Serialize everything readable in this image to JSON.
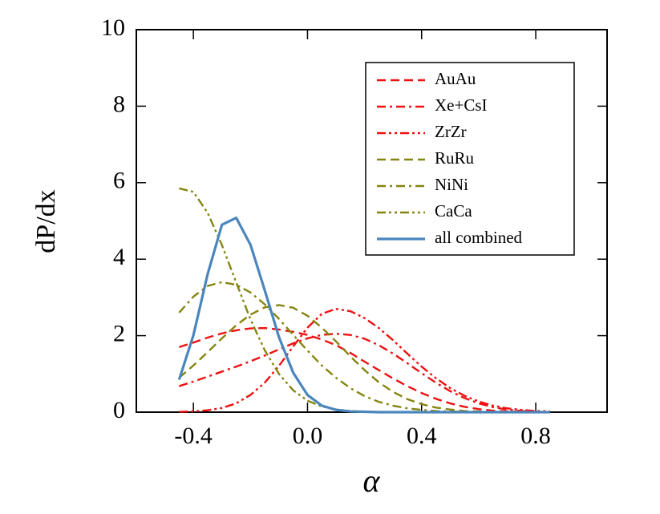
{
  "chart_data": {
    "type": "line",
    "x_label": "α",
    "y_label": "dP/dx",
    "x": [
      -0.45,
      -0.4,
      -0.35,
      -0.3,
      -0.25,
      -0.2,
      -0.15,
      -0.1,
      -0.05,
      0.0,
      0.05,
      0.1,
      0.15,
      0.2,
      0.25,
      0.3,
      0.35,
      0.4,
      0.45,
      0.5,
      0.55,
      0.6,
      0.65,
      0.7,
      0.75,
      0.8,
      0.85
    ],
    "series": [
      {
        "name": "AuAu",
        "color": "#ee1111",
        "style": "dashed",
        "values": [
          1.7,
          1.82,
          1.95,
          2.06,
          2.14,
          2.19,
          2.2,
          2.16,
          2.1,
          2.02,
          1.9,
          1.75,
          1.55,
          1.32,
          1.1,
          0.88,
          0.68,
          0.5,
          0.35,
          0.23,
          0.14,
          0.08,
          0.04,
          0.02,
          0.01,
          0,
          0
        ]
      },
      {
        "name": "Xe+CsI",
        "color": "#ee1111",
        "style": "dashdot",
        "values": [
          0.68,
          0.8,
          0.93,
          1.06,
          1.19,
          1.33,
          1.48,
          1.64,
          1.8,
          1.93,
          2.02,
          2.05,
          2.02,
          1.92,
          1.75,
          1.53,
          1.28,
          1.02,
          0.77,
          0.55,
          0.37,
          0.23,
          0.13,
          0.07,
          0.03,
          0.01,
          0
        ]
      },
      {
        "name": "ZrZr",
        "color": "#ee1111",
        "style": "dashdotdot",
        "values": [
          0.01,
          0.02,
          0.05,
          0.11,
          0.23,
          0.45,
          0.77,
          1.21,
          1.72,
          2.21,
          2.57,
          2.7,
          2.64,
          2.46,
          2.2,
          1.88,
          1.53,
          1.19,
          0.89,
          0.63,
          0.43,
          0.28,
          0.17,
          0.1,
          0.06,
          0.03,
          0.02
        ]
      },
      {
        "name": "RuRu",
        "color": "#858510",
        "style": "dashed",
        "values": [
          0.9,
          1.22,
          1.57,
          1.93,
          2.27,
          2.55,
          2.74,
          2.8,
          2.73,
          2.52,
          2.21,
          1.85,
          1.46,
          1.1,
          0.78,
          0.53,
          0.34,
          0.21,
          0.12,
          0.07,
          0.03,
          0.02,
          0.01,
          0,
          0,
          0,
          0
        ]
      },
      {
        "name": "NiNi",
        "color": "#858510",
        "style": "dashdot",
        "values": [
          2.6,
          3.02,
          3.3,
          3.4,
          3.33,
          3.13,
          2.82,
          2.44,
          2.02,
          1.61,
          1.22,
          0.9,
          0.63,
          0.42,
          0.27,
          0.17,
          0.1,
          0.06,
          0.03,
          0.02,
          0.01,
          0,
          0,
          0,
          0,
          0,
          0
        ]
      },
      {
        "name": "CaCa",
        "color": "#858510",
        "style": "dashdotdot",
        "values": [
          5.85,
          5.76,
          5.21,
          4.37,
          3.39,
          2.43,
          1.62,
          1.0,
          0.57,
          0.3,
          0.15,
          0.07,
          0.03,
          0.01,
          0,
          0,
          0,
          0,
          0,
          0,
          0,
          0,
          0,
          0,
          0,
          0,
          0
        ]
      },
      {
        "name": "all combined",
        "color": "#4a86bd",
        "style": "solid",
        "values": [
          0.85,
          2.01,
          3.61,
          4.9,
          5.08,
          4.38,
          3.19,
          1.96,
          1.03,
          0.45,
          0.17,
          0.06,
          0.02,
          0.01,
          0,
          0,
          0,
          0,
          0,
          0,
          0,
          0,
          0,
          0,
          0,
          0,
          0
        ]
      }
    ],
    "xlim": [
      -0.6,
      1.05
    ],
    "ylim": [
      0,
      10
    ],
    "xticks": [
      {
        "value": -0.4,
        "label": "-0.4"
      },
      {
        "value": 0.0,
        "label": "0.0"
      },
      {
        "value": 0.4,
        "label": "0.4"
      },
      {
        "value": 0.8,
        "label": "0.8"
      }
    ],
    "yticks": [
      0,
      2,
      4,
      6,
      8,
      10
    ],
    "grid": false,
    "legend": "upper right"
  }
}
